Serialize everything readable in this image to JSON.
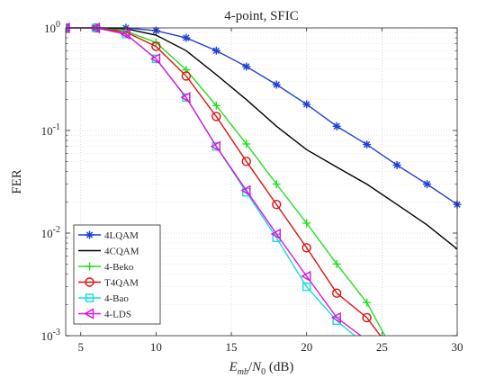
{
  "chart_data": {
    "type": "line",
    "title": "4-point, SFIC",
    "xlabel": "E_mb/N_0 (dB)",
    "ylabel": "FER",
    "xlim": [
      4,
      30
    ],
    "ylim": [
      0.001,
      1
    ],
    "yscale": "log",
    "grid": true,
    "legend_position": "bottom-left",
    "xticks": [
      5,
      10,
      15,
      20,
      25,
      30
    ],
    "yticks": [
      {
        "value": 1,
        "base": "10",
        "exp": "0"
      },
      {
        "value": 0.1,
        "base": "10",
        "exp": "-1"
      },
      {
        "value": 0.01,
        "base": "10",
        "exp": "-2"
      },
      {
        "value": 0.001,
        "base": "10",
        "exp": "-3"
      }
    ],
    "series": [
      {
        "name": "4LQAM",
        "color": "#1f3fd6",
        "marker": "asterisk",
        "x": [
          4,
          6,
          8,
          10,
          12,
          14,
          16,
          18,
          20,
          22,
          24,
          26,
          28,
          30
        ],
        "y": [
          1,
          1,
          1,
          0.94,
          0.8,
          0.6,
          0.42,
          0.28,
          0.18,
          0.11,
          0.073,
          0.046,
          0.03,
          0.019
        ]
      },
      {
        "name": "4CQAM",
        "color": "#000000",
        "marker": "none",
        "x": [
          4,
          6,
          8,
          10,
          12,
          14,
          16,
          18,
          20,
          22,
          24,
          26,
          28,
          30
        ],
        "y": [
          1,
          1,
          0.98,
          0.85,
          0.6,
          0.35,
          0.2,
          0.11,
          0.065,
          0.044,
          0.03,
          0.019,
          0.012,
          0.007
        ]
      },
      {
        "name": "4-Beko",
        "color": "#22dd22",
        "marker": "plus",
        "x": [
          4,
          6,
          8,
          10,
          12,
          14,
          16,
          18,
          20,
          22,
          24,
          25.2
        ],
        "y": [
          1,
          1,
          0.93,
          0.72,
          0.39,
          0.175,
          0.074,
          0.03,
          0.0125,
          0.005,
          0.0021,
          0.001
        ]
      },
      {
        "name": "T4QAM",
        "color": "#dd1111",
        "marker": "circle",
        "x": [
          4,
          6,
          8,
          10,
          12,
          14,
          16,
          18,
          20,
          22,
          24,
          24.9
        ],
        "y": [
          1,
          1,
          0.91,
          0.66,
          0.34,
          0.137,
          0.05,
          0.019,
          0.0072,
          0.0026,
          0.0015,
          0.001
        ]
      },
      {
        "name": "4-Bao",
        "color": "#11dddd",
        "marker": "square",
        "x": [
          4,
          6,
          8,
          10,
          12,
          14,
          16,
          18,
          20,
          22,
          23.2
        ],
        "y": [
          1,
          1,
          0.87,
          0.5,
          0.21,
          0.07,
          0.025,
          0.009,
          0.003,
          0.0014,
          0.001
        ]
      },
      {
        "name": "4-LDS",
        "color": "#dd11dd",
        "marker": "triangle-left",
        "x": [
          4,
          6,
          8,
          10,
          12,
          14,
          16,
          18,
          20,
          22,
          23.6
        ],
        "y": [
          1,
          1,
          0.87,
          0.5,
          0.21,
          0.07,
          0.026,
          0.0098,
          0.0038,
          0.0015,
          0.001
        ]
      }
    ]
  }
}
